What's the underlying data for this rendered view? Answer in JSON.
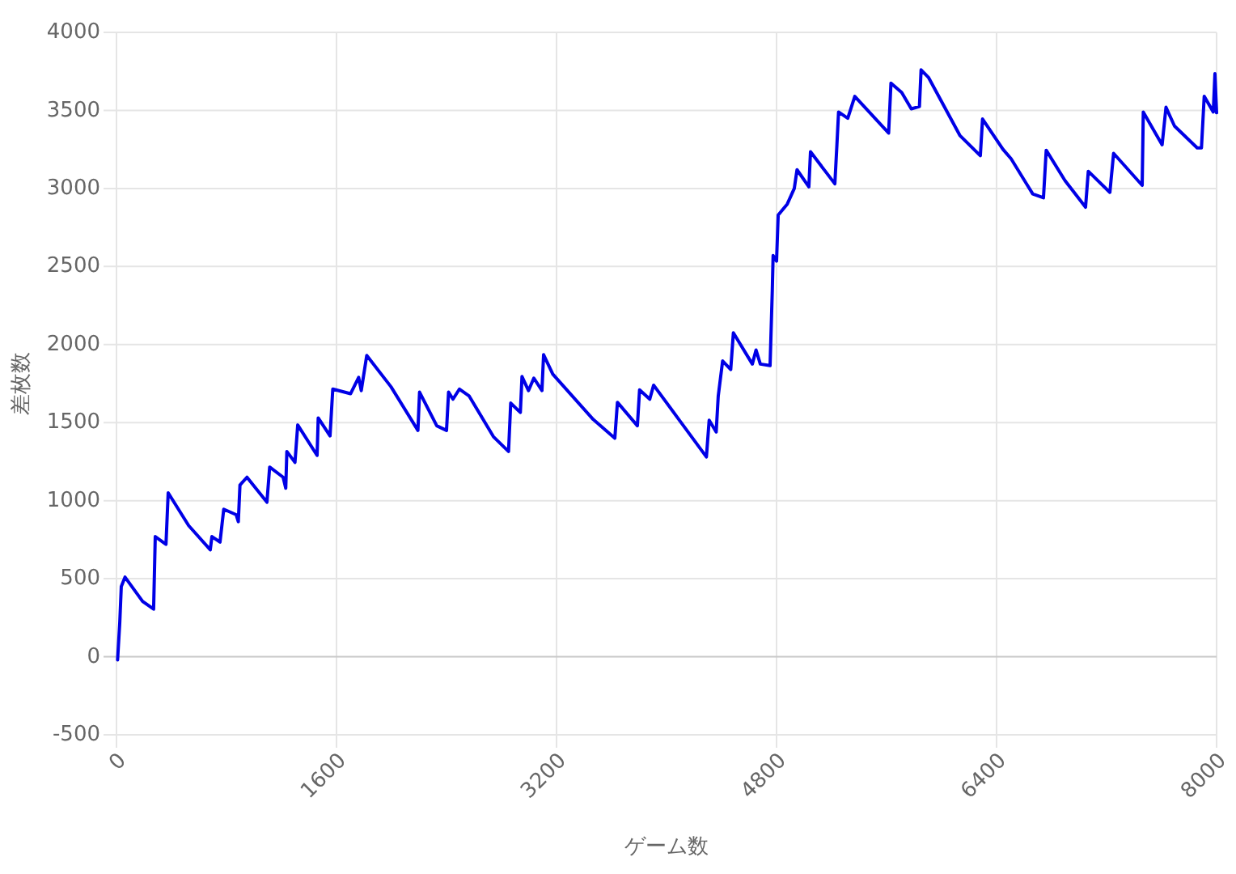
{
  "chart_data": {
    "type": "line",
    "xlabel": "ゲーム数",
    "ylabel": "差枚数",
    "xlim": [
      0,
      8000
    ],
    "ylim": [
      -500,
      4000
    ],
    "xticks": [
      0,
      1600,
      3200,
      4800,
      6400,
      8000
    ],
    "yticks": [
      -500,
      0,
      500,
      1000,
      1500,
      2000,
      2500,
      3000,
      3500,
      4000
    ],
    "grid": true,
    "marker": "none",
    "line_style": "solid",
    "series": [
      {
        "color": "#0000e6",
        "x": [
          8,
          24,
          35,
          62,
          190,
          270,
          282,
          360,
          376,
          525,
          682,
          694,
          753,
          780,
          870,
          886,
          898,
          949,
          1094,
          1114,
          1212,
          1231,
          1239,
          1298,
          1318,
          1459,
          1467,
          1553,
          1573,
          1702,
          1761,
          1780,
          1820,
          1996,
          2192,
          2204,
          2329,
          2400,
          2415,
          2447,
          2494,
          2565,
          2741,
          2851,
          2867,
          2937,
          2949,
          2996,
          3035,
          3094,
          3106,
          3173,
          3467,
          3624,
          3643,
          3788,
          3804,
          3878,
          3906,
          4094,
          4290,
          4310,
          4361,
          4376,
          4408,
          4467,
          4486,
          4624,
          4651,
          4682,
          4753,
          4769,
          4775,
          4800,
          4812,
          4878,
          4929,
          4949,
          5035,
          5047,
          5224,
          5239,
          5251,
          5318,
          5369,
          5615,
          5632,
          5710,
          5780,
          5839,
          5851,
          5906,
          6133,
          6282,
          6298,
          6447,
          6506,
          6663,
          6741,
          6761,
          6898,
          7047,
          7067,
          7224,
          7251,
          7459,
          7467,
          7604,
          7632,
          7694,
          7859,
          7890,
          7910,
          7976,
          7988,
          8000
        ],
        "values": [
          -20,
          220,
          450,
          510,
          355,
          305,
          770,
          720,
          1050,
          840,
          685,
          770,
          735,
          945,
          910,
          865,
          1100,
          1150,
          990,
          1215,
          1150,
          1080,
          1315,
          1245,
          1485,
          1290,
          1530,
          1415,
          1715,
          1685,
          1790,
          1705,
          1930,
          1730,
          1450,
          1695,
          1480,
          1450,
          1695,
          1650,
          1715,
          1670,
          1410,
          1315,
          1625,
          1565,
          1795,
          1705,
          1785,
          1705,
          1935,
          1810,
          1520,
          1400,
          1630,
          1480,
          1710,
          1650,
          1740,
          1515,
          1280,
          1515,
          1440,
          1670,
          1895,
          1840,
          2075,
          1875,
          1965,
          1875,
          1865,
          2345,
          2570,
          2535,
          2830,
          2900,
          3000,
          3120,
          3010,
          3235,
          3030,
          3280,
          3490,
          3450,
          3590,
          3355,
          3675,
          3615,
          3510,
          3525,
          3760,
          3710,
          3340,
          3210,
          3445,
          3250,
          3190,
          2965,
          2940,
          3245,
          3050,
          2880,
          3110,
          2975,
          3225,
          3020,
          3490,
          3280,
          3520,
          3400,
          3260,
          3260,
          3590,
          3490,
          3735,
          3485
        ]
      }
    ]
  }
}
